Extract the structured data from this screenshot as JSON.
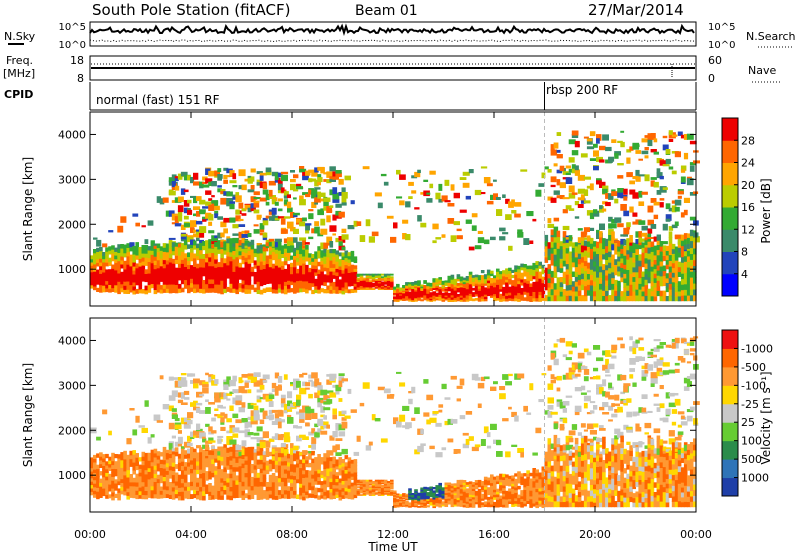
{
  "header": {
    "station": "South Pole Station (fitACF)",
    "beam": "Beam 01",
    "date": "27/Mar/2014"
  },
  "panels": {
    "nsky": {
      "left_label": "N.Sky",
      "right_label": "N.Search",
      "left_ticks": [
        "10^5",
        "10^0"
      ],
      "right_ticks": [
        "10^5",
        "10^0"
      ]
    },
    "freq": {
      "left_label_1": "Freq.",
      "left_label_2": "[MHz]",
      "right_label": "Nave",
      "left_ticks": [
        "18",
        "8"
      ],
      "right_ticks": [
        "60",
        "0"
      ]
    },
    "cpid": {
      "label": "CPID",
      "segments": [
        "normal (fast) 151 RF",
        "rbsp 200 RF"
      ],
      "change_hour": 18.0
    }
  },
  "chart_data": [
    {
      "type": "heatmap",
      "name": "power",
      "ylabel": "Slant Range [km]",
      "xlabel": "",
      "ylim": [
        180,
        4500
      ],
      "yticks": [
        "1000",
        "2000",
        "3000",
        "4000"
      ],
      "colorbar": {
        "label": "Power [dB]",
        "tick_labels": [
          "4",
          "8",
          "12",
          "16",
          "20",
          "24",
          "28"
        ],
        "colors": [
          "#0000ff",
          "#2244bb",
          "#3a8a6a",
          "#33aa33",
          "#bbcc00",
          "#ffa500",
          "#ff6600",
          "#ee0000"
        ]
      }
    },
    {
      "type": "heatmap",
      "name": "velocity",
      "ylabel": "Slant Range [km]",
      "xlabel": "Time UT",
      "ylim": [
        180,
        4500
      ],
      "yticks": [
        "1000",
        "2000",
        "3000",
        "4000"
      ],
      "xticks": [
        "00:00",
        "04:00",
        "08:00",
        "12:00",
        "16:00",
        "20:00",
        "00:00"
      ],
      "colorbar": {
        "label": "Velocity [m s⁻¹]",
        "tick_labels": [
          "1000",
          "500",
          "100",
          "25",
          "-25",
          "-100",
          "-500",
          "-1000"
        ],
        "colors": [
          "#1f3fa8",
          "#2f74b8",
          "#2b8c4b",
          "#66cc33",
          "#c8c8c8",
          "#ffd700",
          "#ff9933",
          "#ff6600",
          "#ee1111"
        ]
      }
    }
  ]
}
